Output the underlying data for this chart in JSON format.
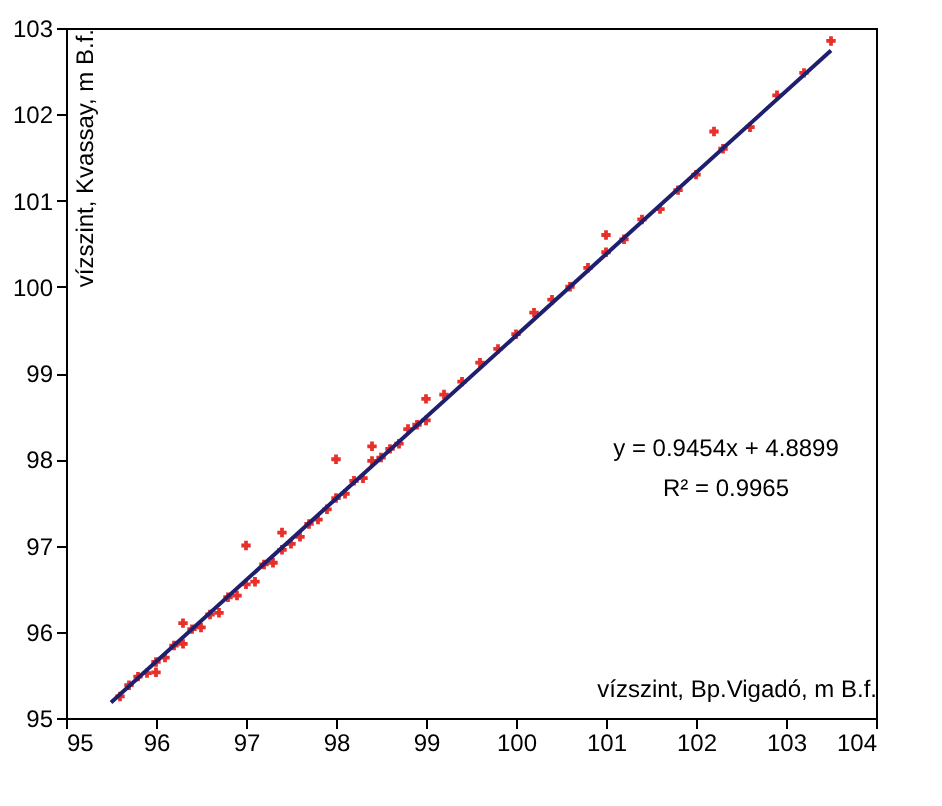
{
  "chart_data": {
    "type": "scatter",
    "xlabel": "vízszint, Bp.Vigadó, m B.f.",
    "ylabel": "vízszint, Kvassay, m B.f.",
    "xlim": [
      95,
      104
    ],
    "xticks": [
      95,
      96,
      97,
      98,
      99,
      100,
      101,
      102,
      103,
      104
    ],
    "ylim": [
      95,
      103
    ],
    "yticks": [
      95,
      96,
      97,
      98,
      99,
      100,
      101,
      102,
      103
    ],
    "grid": false,
    "annotations": [
      "y = 0.9454x + 4.8899",
      "R² = 0.9965"
    ],
    "series": [
      {
        "type": "scatter",
        "color": "#e8302a",
        "marker": "cross",
        "x": [
          95.6,
          95.7,
          95.8,
          95.9,
          96.0,
          96.0,
          96.1,
          96.2,
          96.3,
          96.4,
          96.5,
          96.6,
          96.7,
          96.8,
          96.9,
          97.0,
          97.1,
          97.2,
          97.3,
          97.4,
          97.5,
          97.6,
          97.7,
          97.8,
          97.9,
          98.0,
          98.1,
          98.2,
          98.3,
          98.4,
          98.5,
          98.6,
          98.7,
          98.8,
          98.9,
          99.0,
          99.2,
          99.4,
          99.6,
          99.8,
          100.0,
          100.2,
          100.4,
          100.6,
          100.8,
          101.0,
          101.2,
          101.4,
          101.6,
          101.8,
          102.0,
          102.3,
          102.6,
          102.9,
          103.2,
          103.5,
          98.0,
          97.0,
          96.3,
          98.4,
          97.4,
          99.0,
          101.0,
          102.2
        ],
        "values": [
          95.25,
          95.38,
          95.48,
          95.52,
          95.65,
          95.53,
          95.7,
          95.84,
          95.86,
          96.03,
          96.05,
          96.2,
          96.22,
          96.4,
          96.42,
          96.55,
          96.58,
          96.78,
          96.8,
          96.95,
          97.02,
          97.1,
          97.25,
          97.3,
          97.42,
          97.55,
          97.6,
          97.75,
          97.78,
          97.98,
          98.02,
          98.12,
          98.18,
          98.35,
          98.4,
          98.45,
          98.75,
          98.9,
          99.12,
          99.28,
          99.45,
          99.7,
          99.85,
          100.0,
          100.22,
          100.4,
          100.55,
          100.78,
          100.9,
          101.12,
          101.3,
          101.6,
          101.85,
          102.22,
          102.48,
          102.85,
          98.0,
          97.0,
          96.1,
          98.15,
          97.15,
          98.7,
          100.6,
          101.8
        ]
      },
      {
        "type": "line",
        "color": "#1f1f6e",
        "line_style": "solid",
        "x": [
          95.5,
          103.5
        ],
        "values": [
          95.18,
          102.74
        ]
      }
    ]
  }
}
